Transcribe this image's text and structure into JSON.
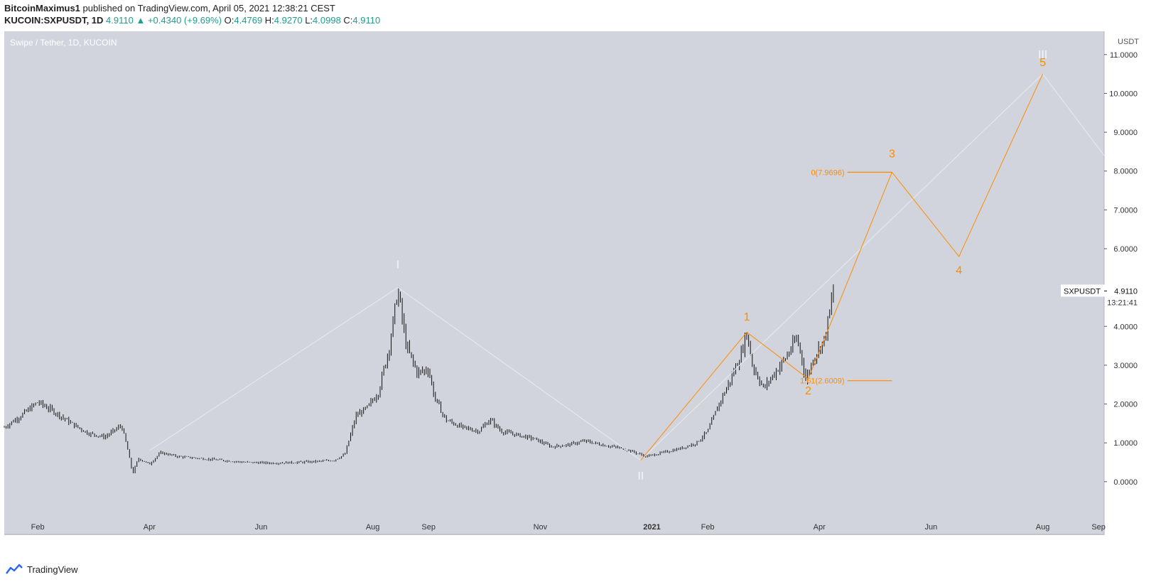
{
  "header": {
    "author": "BitcoinMaximus1",
    "published": "published on TradingView.com, April 05, 2021 12:38:21 CEST",
    "symbol": "KUCOIN:SXPUSDT, 1D",
    "last": "4.9110",
    "change": "+0.4340 (+9.69%)",
    "o_label": "O:",
    "o": "4.4769",
    "h_label": "H:",
    "h": "4.9270",
    "l_label": "L:",
    "l": "4.0998",
    "c_label": "C:",
    "c": "4.9110"
  },
  "colors": {
    "plot_bg": "#d1d4dc",
    "candle": "#111111",
    "wave_orange": "#ff8c00",
    "wave_white": "#f5f5f5",
    "up_arrow": "#26a69a"
  },
  "chart_data": {
    "type": "candlestick",
    "title": "Swipe / Tether, 1D, KUCOIN",
    "ylabel": "USDT",
    "ylim": [
      -0.9,
      11.6
    ],
    "y_ticks": [
      "11.0000",
      "10.0000",
      "9.0000",
      "8.0000",
      "7.0000",
      "6.0000",
      "5.0000",
      "4.0000",
      "3.0000",
      "2.0000",
      "1.0000",
      "0.0000"
    ],
    "y_tick_values": [
      11,
      10,
      9,
      8,
      7,
      6,
      5,
      4,
      3,
      2,
      1,
      0
    ],
    "x_ticks": [
      {
        "label": "Feb",
        "t": 0.3
      },
      {
        "label": "Apr",
        "t": 2.3
      },
      {
        "label": "Jun",
        "t": 4.3
      },
      {
        "label": "Aug",
        "t": 6.3
      },
      {
        "label": "Sep",
        "t": 7.3
      },
      {
        "label": "Nov",
        "t": 9.3
      },
      {
        "label": "2021",
        "t": 11.3
      },
      {
        "label": "Feb",
        "t": 12.3
      },
      {
        "label": "Apr",
        "t": 14.3
      },
      {
        "label": "Jun",
        "t": 16.3
      },
      {
        "label": "Aug",
        "t": 18.3
      },
      {
        "label": "Sep",
        "t": 19.3
      }
    ],
    "x_range": [
      -0.3,
      19.4
    ],
    "price_path": [
      [
        -0.3,
        1.4
      ],
      [
        0.0,
        1.7
      ],
      [
        0.3,
        2.05
      ],
      [
        0.6,
        1.8
      ],
      [
        0.9,
        1.5
      ],
      [
        1.2,
        1.25
      ],
      [
        1.5,
        1.15
      ],
      [
        1.8,
        1.45
      ],
      [
        1.9,
        0.9
      ],
      [
        2.0,
        0.2
      ],
      [
        2.1,
        0.6
      ],
      [
        2.3,
        0.45
      ],
      [
        2.5,
        0.75
      ],
      [
        2.8,
        0.65
      ],
      [
        3.2,
        0.6
      ],
      [
        3.6,
        0.55
      ],
      [
        4.0,
        0.5
      ],
      [
        4.5,
        0.48
      ],
      [
        5.0,
        0.5
      ],
      [
        5.3,
        0.52
      ],
      [
        5.6,
        0.55
      ],
      [
        5.8,
        0.7
      ],
      [
        6.0,
        1.7
      ],
      [
        6.2,
        1.9
      ],
      [
        6.4,
        2.3
      ],
      [
        6.6,
        3.5
      ],
      [
        6.75,
        4.95
      ],
      [
        6.9,
        3.5
      ],
      [
        7.1,
        2.8
      ],
      [
        7.3,
        2.9
      ],
      [
        7.4,
        2.2
      ],
      [
        7.6,
        1.6
      ],
      [
        7.9,
        1.4
      ],
      [
        8.2,
        1.3
      ],
      [
        8.4,
        1.6
      ],
      [
        8.6,
        1.3
      ],
      [
        8.9,
        1.2
      ],
      [
        9.2,
        1.1
      ],
      [
        9.5,
        0.9
      ],
      [
        9.8,
        0.95
      ],
      [
        10.1,
        1.05
      ],
      [
        10.4,
        0.95
      ],
      [
        10.8,
        0.85
      ],
      [
        11.0,
        0.75
      ],
      [
        11.2,
        0.65
      ],
      [
        11.5,
        0.75
      ],
      [
        11.8,
        0.85
      ],
      [
        12.1,
        1.0
      ],
      [
        12.3,
        1.3
      ],
      [
        12.5,
        2.0
      ],
      [
        12.7,
        2.6
      ],
      [
        12.9,
        3.3
      ],
      [
        13.0,
        3.85
      ],
      [
        13.1,
        3.0
      ],
      [
        13.3,
        2.4
      ],
      [
        13.5,
        2.8
      ],
      [
        13.7,
        3.2
      ],
      [
        13.9,
        3.7
      ],
      [
        14.0,
        3.1
      ],
      [
        14.05,
        2.6
      ],
      [
        14.2,
        3.2
      ],
      [
        14.4,
        3.7
      ],
      [
        14.5,
        4.5
      ],
      [
        14.55,
        4.91
      ]
    ],
    "white_wave": {
      "points": [
        [
          2.3,
          0.8
        ],
        [
          6.75,
          5.0
        ],
        [
          11.1,
          0.55
        ],
        [
          18.3,
          10.5
        ],
        [
          19.4,
          8.4
        ]
      ],
      "labels": [
        {
          "text": "I",
          "t": 6.75,
          "v": 5.5
        },
        {
          "text": "II",
          "t": 11.1,
          "v": 0.05
        },
        {
          "text": "III",
          "t": 18.3,
          "v": 10.9
        }
      ]
    },
    "orange_wave": {
      "points": [
        [
          11.1,
          0.55
        ],
        [
          13.0,
          3.85
        ],
        [
          14.1,
          2.65
        ],
        [
          15.6,
          7.9696
        ],
        [
          16.8,
          5.8
        ],
        [
          18.3,
          10.5
        ]
      ],
      "labels": [
        {
          "text": "1",
          "t": 13.0,
          "v": 4.15
        },
        {
          "text": "2",
          "t": 14.1,
          "v": 2.25
        },
        {
          "text": "3",
          "t": 15.6,
          "v": 8.35
        },
        {
          "text": "4",
          "t": 16.8,
          "v": 5.35
        },
        {
          "text": "5",
          "t": 18.3,
          "v": 10.7
        }
      ]
    },
    "fib_levels": [
      {
        "label": "0(7.9696)",
        "value": 7.9696,
        "t_start": 14.8,
        "t_end": 15.6
      },
      {
        "label": "1.61(2.6009)",
        "value": 2.6009,
        "t_start": 14.8,
        "t_end": 15.6
      }
    ],
    "last_price": {
      "symbol": "SXPUSDT",
      "value": "4.9110",
      "countdown": "13:21:41",
      "v": 4.911
    }
  },
  "footer": {
    "brand": "TradingView"
  }
}
